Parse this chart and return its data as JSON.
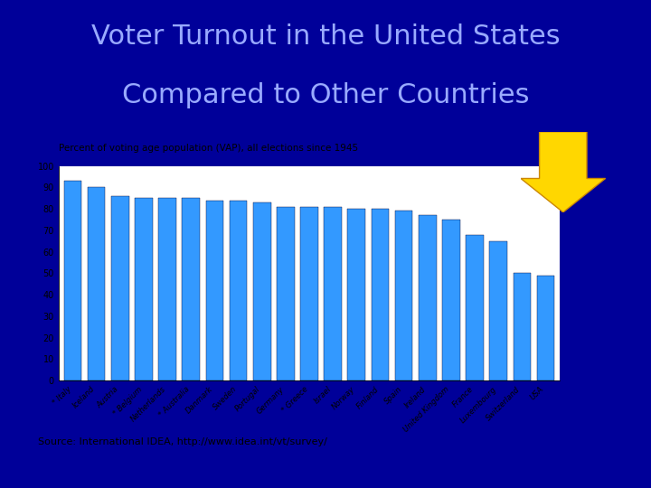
{
  "title_line1": "Voter Turnout in the United States",
  "title_line2": "Compared to Other Countries",
  "subtitle": "Percent of voting age population (VAP), all elections since 1945",
  "source": "Source: International IDEA, http://www.idea.int/vt/survey/",
  "categories": [
    "* Italy",
    "Iceland",
    "Austria",
    "* Belgium",
    "Netherlands",
    "* Australia",
    "Danmark",
    "Sweden",
    "Portugal",
    "Germany",
    "* Greece",
    "Israel",
    "Norway",
    "Finland",
    "Spain",
    "Ireland",
    "United Kingdom",
    "France",
    "Luxembourg",
    "Switzerland",
    "USA"
  ],
  "values": [
    93,
    90,
    86,
    85,
    85,
    85,
    84,
    84,
    83,
    81,
    81,
    81,
    80,
    80,
    79,
    77,
    75,
    68,
    65,
    50,
    49
  ],
  "bar_color": "#3399FF",
  "bar_edge_color": "#000033",
  "background_title": "#000099",
  "background_chart": "#ffffff",
  "title_color": "#99AAFF",
  "title_fontsize": 22,
  "subtitle_fontsize": 7.5,
  "source_fontsize": 8,
  "ylim": [
    0,
    100
  ],
  "yticks": [
    0,
    10,
    20,
    30,
    40,
    50,
    60,
    70,
    80,
    90,
    100
  ],
  "arrow_color_fill": "#FFD700",
  "arrow_color_edge": "#CC8800"
}
